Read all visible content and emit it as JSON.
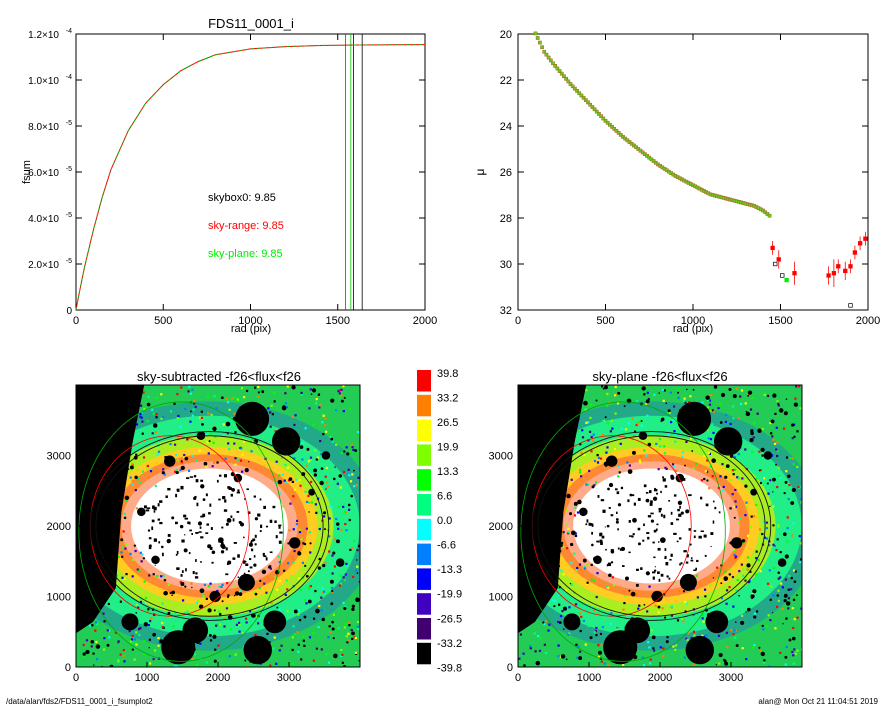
{
  "footer": {
    "path": "/data/alan/fds2/FDS11_0001_i_fsumplot2",
    "stamp": "alan@  Mon Oct 21 11:04:51 2019"
  },
  "chart_data": [
    {
      "type": "line",
      "title": "FDS11_0001_i",
      "xlabel": "rad (pix)",
      "ylabel": "fsum",
      "xlim": [
        0,
        2000
      ],
      "ylim": [
        0,
        0.00012
      ],
      "xticks": [
        "0",
        "500",
        "1000",
        "1500",
        "2000"
      ],
      "yticks": [
        {
          "v": 0,
          "label": "0"
        },
        {
          "v": 2e-05,
          "label": "2.0×10",
          "exp": "-5"
        },
        {
          "v": 4e-05,
          "label": "4.0×10",
          "exp": "-5"
        },
        {
          "v": 6e-05,
          "label": "6.0×10",
          "exp": "-5"
        },
        {
          "v": 8e-05,
          "label": "8.0×10",
          "exp": "-5"
        },
        {
          "v": 0.0001,
          "label": "1.0×10",
          "exp": "-4"
        },
        {
          "v": 0.00012,
          "label": "1.2×10",
          "exp": "-4"
        }
      ],
      "series": [
        {
          "color": "#ff0000",
          "x": [
            0,
            20,
            50,
            100,
            150,
            200,
            300,
            400,
            500,
            600,
            700,
            800,
            1000,
            1200,
            1400,
            1600,
            1800,
            2000
          ],
          "y": [
            0,
            8e-06,
            1.9e-05,
            3.5e-05,
            4.9e-05,
            6.1e-05,
            7.8e-05,
            9e-05,
            9.8e-05,
            0.000104,
            0.000108,
            0.000111,
            0.0001135,
            0.0001145,
            0.000115,
            0.0001152,
            0.0001153,
            0.0001154
          ]
        },
        {
          "color": "#00c000",
          "x": [
            0,
            20,
            50,
            100,
            150,
            200,
            300,
            400,
            500,
            600,
            700,
            800,
            1000,
            1200,
            1400,
            1600,
            1800,
            2000
          ],
          "y": [
            0,
            8e-06,
            1.9e-05,
            3.5e-05,
            4.9e-05,
            6.1e-05,
            7.8e-05,
            9e-05,
            9.8e-05,
            0.000104,
            0.000108,
            0.000111,
            0.0001135,
            0.0001145,
            0.000115,
            0.0001152,
            0.0001153,
            0.0001154
          ]
        }
      ],
      "vlines": [
        {
          "x": 1545,
          "color": "#ff0000"
        },
        {
          "x": 1575,
          "color": "#00c000"
        },
        {
          "x": 1590,
          "color": "#000000"
        },
        {
          "x": 1640,
          "color": "#000000"
        }
      ],
      "annotations": [
        {
          "text": "skybox0:  9.85",
          "color": "#000000"
        },
        {
          "text": "sky-range:  9.85",
          "color": "#ff0000"
        },
        {
          "text": "sky-plane:  9.85",
          "color": "#00ee00"
        }
      ]
    },
    {
      "type": "scatter",
      "title": "",
      "xlabel": "rad (pix)",
      "ylabel": "μ",
      "xlim": [
        0,
        2000
      ],
      "ylim": [
        32,
        20
      ],
      "xticks": [
        "0",
        "500",
        "1000",
        "1500",
        "2000"
      ],
      "yticks": [
        "20",
        "22",
        "24",
        "26",
        "28",
        "30",
        "32"
      ],
      "profile_x": [
        100,
        150,
        200,
        300,
        400,
        500,
        600,
        700,
        800,
        900,
        1000,
        1050,
        1100,
        1150,
        1200,
        1250,
        1300,
        1350,
        1400,
        1450
      ],
      "profile_y": [
        20.0,
        20.8,
        21.3,
        22.2,
        23.0,
        23.8,
        24.5,
        25.1,
        25.7,
        26.2,
        26.6,
        26.8,
        27.0,
        27.1,
        27.2,
        27.3,
        27.4,
        27.5,
        27.7,
        28.0
      ],
      "outer_points": [
        {
          "x": 1455,
          "y": 29.3,
          "color": "#ff0000",
          "err": 0.3
        },
        {
          "x": 1470,
          "y": 30.0,
          "color": "#000000",
          "err": 0
        },
        {
          "x": 1490,
          "y": 29.8,
          "color": "#ff0000",
          "err": 0.4
        },
        {
          "x": 1510,
          "y": 30.5,
          "color": "#000000",
          "err": 0
        },
        {
          "x": 1535,
          "y": 30.7,
          "color": "#00ee00",
          "err": 0
        },
        {
          "x": 1580,
          "y": 30.4,
          "color": "#ff0000",
          "err": 0.5
        },
        {
          "x": 1775,
          "y": 30.5,
          "color": "#ff0000",
          "err": 0.4
        },
        {
          "x": 1805,
          "y": 30.4,
          "color": "#ff0000",
          "err": 0.6
        },
        {
          "x": 1830,
          "y": 30.1,
          "color": "#ff0000",
          "err": 0.3
        },
        {
          "x": 1870,
          "y": 30.3,
          "color": "#ff0000",
          "err": 0.4
        },
        {
          "x": 1900,
          "y": 30.1,
          "color": "#ff0000",
          "err": 0.3
        },
        {
          "x": 1925,
          "y": 29.5,
          "color": "#ff0000",
          "err": 0.3
        },
        {
          "x": 1955,
          "y": 29.1,
          "color": "#ff0000",
          "err": 0.3
        },
        {
          "x": 1985,
          "y": 28.9,
          "color": "#ff0000",
          "err": 0.3
        },
        {
          "x": 1900,
          "y": 31.8,
          "color": "#000000",
          "err": 0
        }
      ]
    },
    {
      "type": "heatmap",
      "title": "sky-subtracted -f26<flux<f26",
      "xticks": [
        "0",
        "1000",
        "2000",
        "3000"
      ],
      "yticks": [
        "0",
        "1000",
        "2000",
        "3000"
      ],
      "xlim": [
        0,
        4000
      ],
      "ylim": [
        0,
        4000
      ]
    },
    {
      "type": "heatmap",
      "title": "sky-plane -f26<flux<f26",
      "xticks": [
        "0",
        "1000",
        "2000",
        "3000"
      ],
      "yticks": [
        "0",
        "1000",
        "2000",
        "3000"
      ],
      "xlim": [
        0,
        4000
      ],
      "ylim": [
        0,
        4000
      ]
    }
  ],
  "colorbar": {
    "labels": [
      "39.8",
      "33.2",
      "26.5",
      "19.9",
      "13.3",
      "6.6",
      "0.0",
      "-6.6",
      "-13.3",
      "-19.9",
      "-26.5",
      "-33.2",
      "-39.8"
    ],
    "colors": [
      "#ff0000",
      "#ff8000",
      "#ffff00",
      "#80ff00",
      "#00ff00",
      "#00ff80",
      "#00ffff",
      "#0080ff",
      "#0000ff",
      "#4000c0",
      "#400070",
      "#000000"
    ]
  }
}
